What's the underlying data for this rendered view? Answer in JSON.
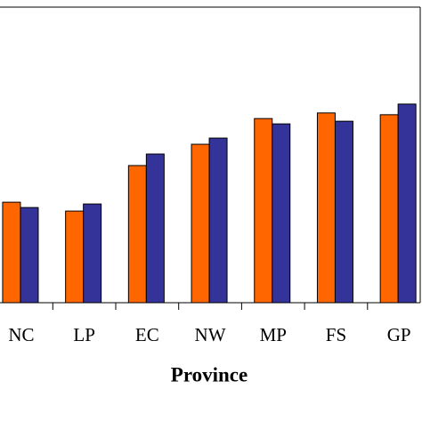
{
  "chart_data": {
    "type": "bar",
    "x_label": "Province",
    "categories": [
      "NC",
      "LP",
      "EC",
      "NW",
      "MP",
      "FS",
      "GP"
    ],
    "series": [
      {
        "color": "#ff6600",
        "values": [
          34,
          31,
          46.4,
          53.6,
          62.3,
          64.2,
          63.6
        ]
      },
      {
        "color": "#333399",
        "values": [
          32.2,
          33.4,
          50.3,
          55.7,
          60.5,
          61.4,
          67.2
        ]
      }
    ],
    "ylim": [
      0,
      100
    ]
  }
}
